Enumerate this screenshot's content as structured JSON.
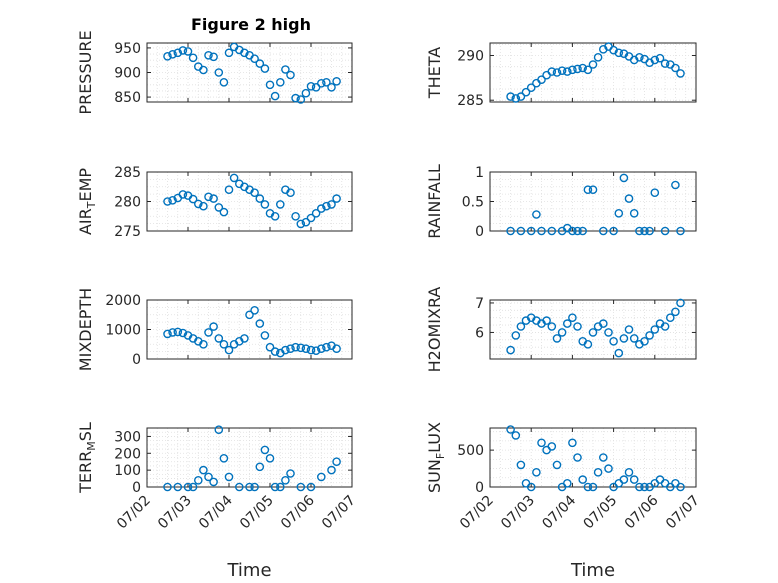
{
  "figure": {
    "title": "Figure 2 high"
  },
  "colors": {
    "marker": "#0072BD",
    "axes": "#262626",
    "grid": "#dfdfdf"
  },
  "chart_data": [
    {
      "type": "scatter",
      "title": "Figure 2 high",
      "ylabel": "PRESSURE",
      "xlim": [
        "07/02",
        "07/07"
      ],
      "ylim": [
        840,
        960
      ],
      "yticks": [
        850,
        900,
        950
      ],
      "x": [
        "07/02 12:00",
        "07/02 15:00",
        "07/02 18:00",
        "07/02 21:00",
        "07/03 00:00",
        "07/03 03:00",
        "07/03 06:00",
        "07/03 09:00",
        "07/03 12:00",
        "07/03 15:00",
        "07/03 18:00",
        "07/03 21:00",
        "07/04 00:00",
        "07/04 03:00",
        "07/04 06:00",
        "07/04 09:00",
        "07/04 12:00",
        "07/04 15:00",
        "07/04 18:00",
        "07/04 21:00",
        "07/05 00:00",
        "07/05 03:00",
        "07/05 06:00",
        "07/05 09:00",
        "07/05 12:00",
        "07/05 15:00",
        "07/05 18:00",
        "07/05 21:00",
        "07/06 00:00",
        "07/06 03:00",
        "07/06 06:00",
        "07/06 09:00",
        "07/06 12:00",
        "07/06 15:00"
      ],
      "y": [
        933,
        937,
        940,
        945,
        943,
        930,
        912,
        905,
        935,
        932,
        900,
        880,
        940,
        952,
        946,
        940,
        935,
        928,
        918,
        908,
        875,
        852,
        880,
        906,
        895,
        848,
        845,
        858,
        872,
        870,
        878,
        880,
        870,
        882
      ]
    },
    {
      "type": "scatter",
      "ylabel": "THETA",
      "xlim": [
        "07/02",
        "07/07"
      ],
      "ylim": [
        284.8,
        291.4
      ],
      "yticks": [
        285,
        290
      ],
      "x": [
        "07/02 12:00",
        "07/02 15:00",
        "07/02 18:00",
        "07/02 21:00",
        "07/03 00:00",
        "07/03 03:00",
        "07/03 06:00",
        "07/03 09:00",
        "07/03 12:00",
        "07/03 15:00",
        "07/03 18:00",
        "07/03 21:00",
        "07/04 00:00",
        "07/04 03:00",
        "07/04 06:00",
        "07/04 09:00",
        "07/04 12:00",
        "07/04 15:00",
        "07/04 18:00",
        "07/04 21:00",
        "07/05 00:00",
        "07/05 03:00",
        "07/05 06:00",
        "07/05 09:00",
        "07/05 12:00",
        "07/05 15:00",
        "07/05 18:00",
        "07/05 21:00",
        "07/06 00:00",
        "07/06 03:00",
        "07/06 06:00",
        "07/06 09:00",
        "07/06 12:00",
        "07/06 15:00"
      ],
      "y": [
        285.4,
        285.2,
        285.4,
        285.9,
        286.4,
        286.9,
        287.3,
        287.8,
        288.2,
        288.1,
        288.3,
        288.2,
        288.4,
        288.5,
        288.6,
        288.4,
        289.0,
        289.8,
        290.7,
        291.0,
        290.6,
        290.3,
        290.2,
        289.9,
        289.5,
        289.8,
        289.6,
        289.2,
        289.5,
        289.7,
        289.1,
        289.0,
        288.6,
        288.0
      ]
    },
    {
      "type": "scatter",
      "ylabel": "AIR_TEMP",
      "xlim": [
        "07/02",
        "07/07"
      ],
      "ylim": [
        275,
        285
      ],
      "yticks": [
        275,
        280,
        285
      ],
      "x": [
        "07/02 12:00",
        "07/02 15:00",
        "07/02 18:00",
        "07/02 21:00",
        "07/03 00:00",
        "07/03 03:00",
        "07/03 06:00",
        "07/03 09:00",
        "07/03 12:00",
        "07/03 15:00",
        "07/03 18:00",
        "07/03 21:00",
        "07/04 00:00",
        "07/04 03:00",
        "07/04 06:00",
        "07/04 09:00",
        "07/04 12:00",
        "07/04 15:00",
        "07/04 18:00",
        "07/04 21:00",
        "07/05 00:00",
        "07/05 03:00",
        "07/05 06:00",
        "07/05 09:00",
        "07/05 12:00",
        "07/05 15:00",
        "07/05 18:00",
        "07/05 21:00",
        "07/06 00:00",
        "07/06 03:00",
        "07/06 06:00",
        "07/06 09:00",
        "07/06 12:00",
        "07/06 15:00"
      ],
      "y": [
        280.0,
        280.2,
        280.6,
        281.2,
        281.0,
        280.4,
        279.6,
        279.2,
        280.8,
        280.5,
        279.0,
        278.2,
        282.0,
        284.0,
        283.0,
        282.5,
        282.0,
        281.5,
        280.5,
        279.5,
        278.0,
        277.5,
        279.5,
        282.0,
        281.5,
        277.5,
        276.2,
        276.5,
        277.2,
        278.0,
        278.8,
        279.2,
        279.5,
        280.5
      ]
    },
    {
      "type": "scatter",
      "ylabel": "RAINFALL",
      "xlim": [
        "07/02",
        "07/07"
      ],
      "ylim": [
        0,
        1
      ],
      "yticks": [
        0,
        0.5,
        1
      ],
      "x": [
        "07/02 12:00",
        "07/02 18:00",
        "07/03 00:00",
        "07/03 03:00",
        "07/03 06:00",
        "07/03 12:00",
        "07/03 18:00",
        "07/03 21:00",
        "07/04 00:00",
        "07/04 03:00",
        "07/04 06:00",
        "07/04 09:00",
        "07/04 12:00",
        "07/04 18:00",
        "07/05 00:00",
        "07/05 03:00",
        "07/05 06:00",
        "07/05 09:00",
        "07/05 12:00",
        "07/05 15:00",
        "07/05 18:00",
        "07/05 21:00",
        "07/06 00:00",
        "07/06 06:00",
        "07/06 12:00",
        "07/06 15:00"
      ],
      "y": [
        0,
        0,
        0,
        0.28,
        0,
        0,
        0,
        0.05,
        0,
        0,
        0,
        0.7,
        0.7,
        0,
        0,
        0.3,
        0.9,
        0.55,
        0.3,
        0,
        0,
        0,
        0.65,
        0,
        0.78,
        0
      ]
    },
    {
      "type": "scatter",
      "ylabel": "MIXDEPTH",
      "xlim": [
        "07/02",
        "07/07"
      ],
      "ylim": [
        0,
        2000
      ],
      "yticks": [
        0,
        1000,
        2000
      ],
      "x": [
        "07/02 12:00",
        "07/02 15:00",
        "07/02 18:00",
        "07/02 21:00",
        "07/03 00:00",
        "07/03 03:00",
        "07/03 06:00",
        "07/03 09:00",
        "07/03 12:00",
        "07/03 15:00",
        "07/03 18:00",
        "07/03 21:00",
        "07/04 00:00",
        "07/04 03:00",
        "07/04 06:00",
        "07/04 09:00",
        "07/04 12:00",
        "07/04 15:00",
        "07/04 18:00",
        "07/04 21:00",
        "07/05 00:00",
        "07/05 03:00",
        "07/05 06:00",
        "07/05 09:00",
        "07/05 12:00",
        "07/05 15:00",
        "07/05 18:00",
        "07/05 21:00",
        "07/06 00:00",
        "07/06 03:00",
        "07/06 06:00",
        "07/06 09:00",
        "07/06 12:00",
        "07/06 15:00"
      ],
      "y": [
        850,
        900,
        920,
        880,
        800,
        700,
        600,
        500,
        900,
        1100,
        700,
        500,
        300,
        500,
        600,
        700,
        1500,
        1650,
        1200,
        800,
        400,
        250,
        200,
        300,
        350,
        400,
        380,
        350,
        300,
        280,
        350,
        400,
        450,
        350
      ]
    },
    {
      "type": "scatter",
      "ylabel": "H2OMIXRA",
      "xlim": [
        "07/02",
        "07/07"
      ],
      "ylim": [
        5.1,
        7.1
      ],
      "yticks": [
        6,
        7
      ],
      "x": [
        "07/02 12:00",
        "07/02 15:00",
        "07/02 18:00",
        "07/02 21:00",
        "07/03 00:00",
        "07/03 03:00",
        "07/03 06:00",
        "07/03 09:00",
        "07/03 12:00",
        "07/03 15:00",
        "07/03 18:00",
        "07/03 21:00",
        "07/04 00:00",
        "07/04 03:00",
        "07/04 06:00",
        "07/04 09:00",
        "07/04 12:00",
        "07/04 15:00",
        "07/04 18:00",
        "07/04 21:00",
        "07/05 00:00",
        "07/05 03:00",
        "07/05 06:00",
        "07/05 09:00",
        "07/05 12:00",
        "07/05 15:00",
        "07/05 18:00",
        "07/05 21:00",
        "07/06 00:00",
        "07/06 03:00",
        "07/06 06:00",
        "07/06 09:00",
        "07/06 12:00",
        "07/06 15:00"
      ],
      "y": [
        5.4,
        5.9,
        6.2,
        6.4,
        6.5,
        6.4,
        6.3,
        6.4,
        6.2,
        5.8,
        6.0,
        6.3,
        6.5,
        6.2,
        5.7,
        5.6,
        6.0,
        6.2,
        6.3,
        6.0,
        5.7,
        5.3,
        5.8,
        6.1,
        5.8,
        5.6,
        5.7,
        5.9,
        6.1,
        6.3,
        6.2,
        6.5,
        6.7,
        7.0
      ]
    },
    {
      "type": "scatter",
      "ylabel": "TERR_MSL",
      "xlim": [
        "07/02",
        "07/07"
      ],
      "ylim": [
        0,
        350
      ],
      "yticks": [
        0,
        100,
        200,
        300
      ],
      "x": [
        "07/02 12:00",
        "07/02 18:00",
        "07/03 00:00",
        "07/03 03:00",
        "07/03 06:00",
        "07/03 09:00",
        "07/03 12:00",
        "07/03 15:00",
        "07/03 18:00",
        "07/03 21:00",
        "07/04 00:00",
        "07/04 06:00",
        "07/04 12:00",
        "07/04 15:00",
        "07/04 18:00",
        "07/04 21:00",
        "07/05 00:00",
        "07/05 03:00",
        "07/05 06:00",
        "07/05 09:00",
        "07/05 12:00",
        "07/05 18:00",
        "07/06 00:00",
        "07/06 06:00",
        "07/06 12:00",
        "07/06 15:00"
      ],
      "y": [
        0,
        0,
        0,
        0,
        40,
        100,
        60,
        30,
        340,
        170,
        60,
        0,
        0,
        0,
        120,
        220,
        170,
        0,
        0,
        40,
        80,
        0,
        0,
        60,
        100,
        150
      ]
    },
    {
      "type": "scatter",
      "ylabel": "SUN_FLUX",
      "xlim": [
        "07/02",
        "07/07"
      ],
      "ylim": [
        0,
        800
      ],
      "yticks": [
        0,
        500
      ],
      "x": [
        "07/02 12:00",
        "07/02 15:00",
        "07/02 18:00",
        "07/02 21:00",
        "07/03 00:00",
        "07/03 03:00",
        "07/03 06:00",
        "07/03 09:00",
        "07/03 12:00",
        "07/03 15:00",
        "07/03 18:00",
        "07/03 21:00",
        "07/04 00:00",
        "07/04 03:00",
        "07/04 06:00",
        "07/04 09:00",
        "07/04 12:00",
        "07/04 15:00",
        "07/04 18:00",
        "07/04 21:00",
        "07/05 00:00",
        "07/05 03:00",
        "07/05 06:00",
        "07/05 09:00",
        "07/05 12:00",
        "07/05 15:00",
        "07/05 18:00",
        "07/05 21:00",
        "07/06 00:00",
        "07/06 03:00",
        "07/06 06:00",
        "07/06 09:00",
        "07/06 12:00",
        "07/06 15:00"
      ],
      "y": [
        780,
        700,
        300,
        50,
        0,
        200,
        600,
        500,
        550,
        300,
        0,
        50,
        600,
        400,
        100,
        0,
        0,
        200,
        400,
        250,
        0,
        50,
        100,
        200,
        100,
        0,
        0,
        0,
        50,
        100,
        50,
        0,
        50,
        0
      ]
    }
  ],
  "xticklabels": [
    "07/02",
    "07/03",
    "07/04",
    "07/05",
    "07/06",
    "07/07"
  ],
  "xlabel": "Time"
}
